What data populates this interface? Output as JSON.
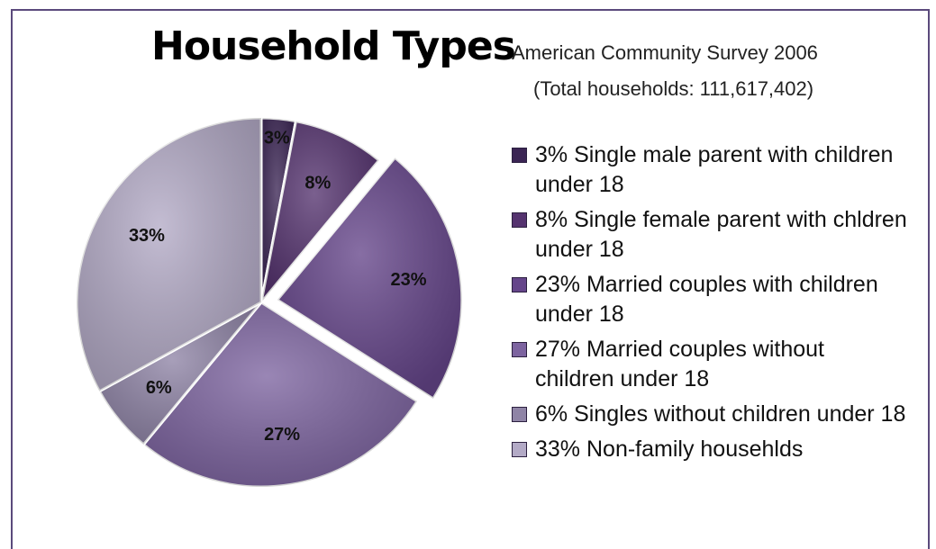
{
  "chart_data": {
    "type": "pie",
    "title": "Household Types",
    "subtitle": "American Community Survey 2006",
    "subtitle2": "(Total households: 111,617,402)",
    "legend_position": "right",
    "slices": [
      {
        "label": "3% Single male parent with children under 18",
        "value_label": "3%",
        "value": 3,
        "color": "#3b2554",
        "exploded": false
      },
      {
        "label": "8% Single female parent with chldren under 18",
        "value_label": "8%",
        "value": 8,
        "color": "#55336f",
        "exploded": false
      },
      {
        "label": "23% Married couples with children under 18",
        "value_label": "23%",
        "value": 23,
        "color": "#65458a",
        "exploded": true
      },
      {
        "label": "27% Married couples without children under 18",
        "value_label": "27%",
        "value": 27,
        "color": "#7d64a0",
        "exploded": false
      },
      {
        "label": "6% Singles without children under 18",
        "value_label": "6%",
        "value": 6,
        "color": "#8f84a6",
        "exploded": false
      },
      {
        "label": "33% Non-family househlds",
        "value_label": "33%",
        "value": 33,
        "color": "#b3aac6",
        "exploded": false
      }
    ]
  }
}
